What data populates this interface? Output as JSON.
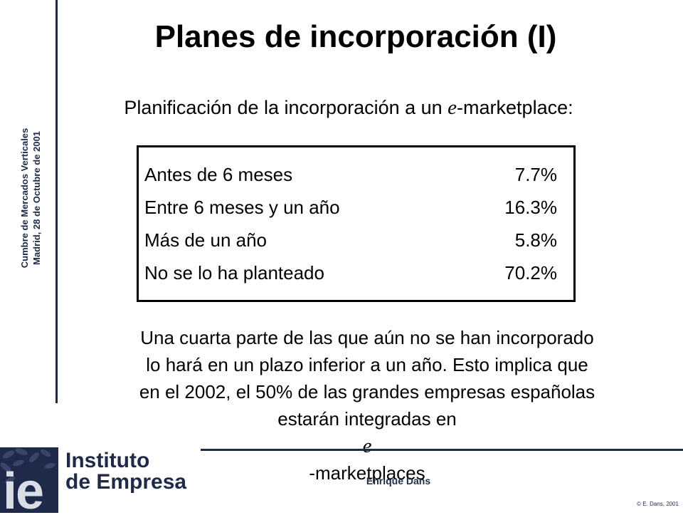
{
  "sidebar": {
    "line1": "Cumbre de Mercados Verticales",
    "line2": "Madrid, 28 de Octubre de 2001"
  },
  "slide": {
    "title": "Planes de incorporación (I)",
    "subtitle_pre": "Planificación de la incorporación a un ",
    "subtitle_e": "e",
    "subtitle_post": "-marketplace:",
    "table": [
      {
        "label": "Antes de 6 meses",
        "value": "7.7%"
      },
      {
        "label": "Entre 6 meses y un año",
        "value": "16.3%"
      },
      {
        "label": "Más de un año",
        "value": "5.8%"
      },
      {
        "label": "No se lo ha planteado",
        "value": "70.2%"
      }
    ],
    "conclusion": {
      "line1": "Una cuarta parte de las que aún no se han incorporado",
      "line2": "lo hará en un plazo inferior a un año. Esto implica que",
      "line3": "en el 2002, el 50% de las grandes empresas españolas",
      "line4_pre": "estarán integradas en ",
      "line4_e": "e",
      "line4_post": "-marketplaces"
    }
  },
  "footer": {
    "logo_mark": "ie",
    "logo_line1": "Instituto",
    "logo_line2": "de Empresa",
    "presenter": "Enrique Dans",
    "copyright": "© E. Dans, 2001"
  },
  "colors": {
    "navy": "#1f2a4a",
    "text": "#000000",
    "background": "#ffffff"
  }
}
